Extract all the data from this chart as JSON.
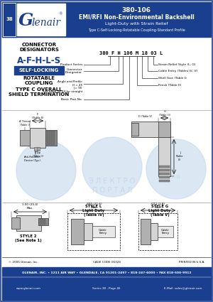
{
  "title_part": "380-106",
  "title_line1": "EMI/RFI Non-Environmental Backshell",
  "title_line2": "Light-Duty with Strain Relief",
  "title_line3": "Type C-Self-Locking-Rotatable Coupling-Standard Profile",
  "header_bg": "#1b3f8f",
  "header_text_color": "#ffffff",
  "logo_text": "Glenair",
  "tab_text": "38",
  "footer_line1": "GLENAIR, INC. • 1211 AIR WAY • GLENDALE, CA 91201-2497 • 818-247-6000 • FAX 818-500-9912",
  "footer_line2": "www.glenair.com",
  "footer_line3": "Series 38 - Page 46",
  "footer_line4": "E-Mail: sales@glenair.com",
  "copyright": "© 2005 Glenair, Inc.",
  "cage_code": "CAGE CODE 06324",
  "printed": "PRINTED IN U.S.A.",
  "body_bg": "#ffffff",
  "watermark_color": "#c5d8ee",
  "border_color": "#1b3f8f",
  "gray_light": "#d4d4d4",
  "gray_mid": "#b0b0b0",
  "gray_dark": "#888888"
}
